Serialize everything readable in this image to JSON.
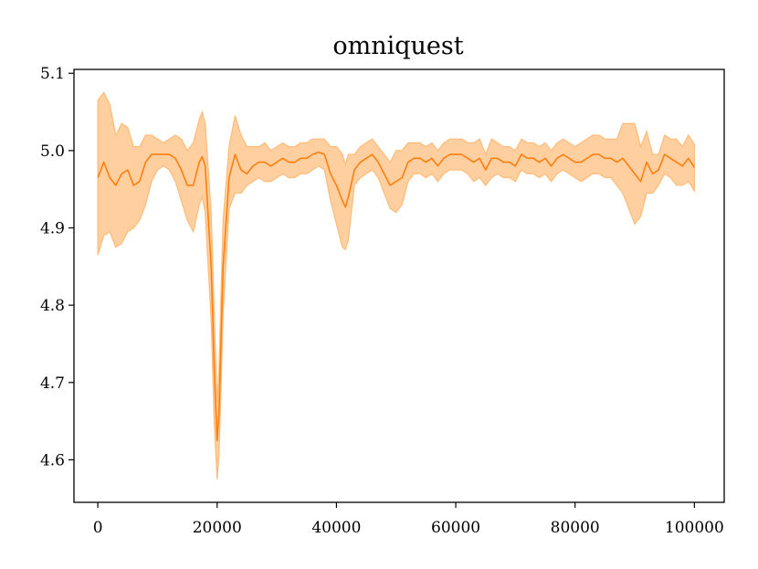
{
  "chart_data": {
    "type": "line",
    "title": "omniquest",
    "xlabel": "",
    "ylabel": "",
    "xlim": [
      -4000,
      105000
    ],
    "ylim": [
      4.545,
      5.105
    ],
    "x_ticks": [
      0,
      20000,
      40000,
      60000,
      80000,
      100000
    ],
    "x_tick_labels": [
      "0",
      "20000",
      "40000",
      "60000",
      "80000",
      "100000"
    ],
    "y_ticks": [
      4.6,
      4.7,
      4.8,
      4.9,
      5.0,
      5.1
    ],
    "y_tick_labels": [
      "4.6",
      "4.7",
      "4.8",
      "4.9",
      "5.0",
      "5.1"
    ],
    "grid": false,
    "legend": "none",
    "colors": {
      "line": "#ff7f0e",
      "band": "#ffbb78"
    },
    "series": [
      {
        "x": [
          0,
          1000,
          2000,
          3000,
          4000,
          5000,
          6000,
          7000,
          8000,
          9000,
          10000,
          11000,
          12000,
          13000,
          14000,
          15000,
          16000,
          17000,
          17500,
          18000,
          19000,
          19500,
          20000,
          20300,
          20600,
          21000,
          22000,
          23000,
          24000,
          25000,
          26000,
          27000,
          28000,
          29000,
          30000,
          31000,
          32000,
          33000,
          34000,
          35000,
          36000,
          37000,
          38000,
          39000,
          40000,
          41000,
          41500,
          42000,
          43000,
          44000,
          45000,
          46000,
          47000,
          48000,
          49000,
          50000,
          51000,
          52000,
          53000,
          54000,
          55000,
          56000,
          57000,
          58000,
          59000,
          60000,
          61000,
          62000,
          63000,
          64000,
          65000,
          66000,
          67000,
          68000,
          69000,
          70000,
          71000,
          72000,
          73000,
          74000,
          75000,
          76000,
          77000,
          78000,
          79000,
          80000,
          81000,
          82000,
          83000,
          84000,
          85000,
          86000,
          87000,
          88000,
          89000,
          90000,
          91000,
          92000,
          93000,
          94000,
          95000,
          96000,
          97000,
          98000,
          99000,
          100000
        ],
        "y": [
          4.965,
          4.985,
          4.965,
          4.955,
          4.97,
          4.975,
          4.955,
          4.96,
          4.985,
          4.995,
          4.995,
          4.995,
          4.995,
          4.99,
          4.975,
          4.955,
          4.955,
          4.985,
          4.992,
          4.98,
          4.85,
          4.72,
          4.625,
          4.66,
          4.74,
          4.85,
          4.965,
          4.995,
          4.975,
          4.97,
          4.98,
          4.985,
          4.985,
          4.98,
          4.985,
          4.99,
          4.985,
          4.985,
          4.99,
          4.99,
          4.995,
          4.998,
          4.995,
          4.97,
          4.955,
          4.935,
          4.927,
          4.94,
          4.975,
          4.985,
          4.99,
          4.995,
          4.985,
          4.97,
          4.955,
          4.96,
          4.965,
          4.985,
          4.99,
          4.99,
          4.985,
          4.99,
          4.98,
          4.99,
          4.995,
          4.995,
          4.995,
          4.99,
          4.985,
          4.99,
          4.975,
          4.99,
          4.99,
          4.985,
          4.985,
          4.98,
          4.995,
          4.99,
          4.99,
          4.985,
          4.99,
          4.98,
          4.99,
          4.995,
          4.99,
          4.985,
          4.985,
          4.99,
          4.995,
          4.995,
          4.99,
          4.99,
          4.985,
          4.99,
          4.98,
          4.97,
          4.96,
          4.985,
          4.97,
          4.975,
          4.995,
          4.99,
          4.985,
          4.98,
          4.99,
          4.978
        ],
        "lower": [
          4.865,
          4.89,
          4.895,
          4.875,
          4.88,
          4.895,
          4.9,
          4.91,
          4.93,
          4.96,
          4.975,
          4.98,
          4.975,
          4.96,
          4.935,
          4.91,
          4.895,
          4.93,
          4.94,
          4.92,
          4.78,
          4.65,
          4.575,
          4.605,
          4.68,
          4.79,
          4.925,
          4.945,
          4.945,
          4.955,
          4.96,
          4.965,
          4.96,
          4.96,
          4.965,
          4.97,
          4.965,
          4.965,
          4.97,
          4.97,
          4.975,
          4.98,
          4.975,
          4.935,
          4.905,
          4.875,
          4.872,
          4.885,
          4.955,
          4.965,
          4.97,
          4.975,
          4.965,
          4.945,
          4.925,
          4.92,
          4.93,
          4.96,
          4.97,
          4.97,
          4.965,
          4.97,
          4.96,
          4.97,
          4.975,
          4.975,
          4.975,
          4.97,
          4.96,
          4.965,
          4.955,
          4.965,
          4.97,
          4.965,
          4.965,
          4.96,
          4.975,
          4.97,
          4.97,
          4.965,
          4.97,
          4.96,
          4.97,
          4.975,
          4.97,
          4.965,
          4.96,
          4.965,
          4.97,
          4.97,
          4.965,
          4.965,
          4.955,
          4.945,
          4.925,
          4.905,
          4.915,
          4.945,
          4.945,
          4.955,
          4.97,
          4.965,
          4.955,
          4.955,
          4.96,
          4.948
        ],
        "upper": [
          5.065,
          5.075,
          5.06,
          5.02,
          5.035,
          5.03,
          5.005,
          5.005,
          5.02,
          5.02,
          5.015,
          5.01,
          5.015,
          5.02,
          5.015,
          5.0,
          5.01,
          5.04,
          5.05,
          5.035,
          4.92,
          4.79,
          4.675,
          4.715,
          4.8,
          4.91,
          5.005,
          5.045,
          5.02,
          5.005,
          5.005,
          5.005,
          5.01,
          5.0,
          5.005,
          5.01,
          5.005,
          5.005,
          5.01,
          5.01,
          5.015,
          5.015,
          5.015,
          5.005,
          5.005,
          4.995,
          4.982,
          4.995,
          4.995,
          5.005,
          5.01,
          5.015,
          5.005,
          4.995,
          4.985,
          5.0,
          5.0,
          5.01,
          5.01,
          5.01,
          5.005,
          5.01,
          5.0,
          5.01,
          5.015,
          5.015,
          5.015,
          5.01,
          5.01,
          5.015,
          4.995,
          5.015,
          5.01,
          5.005,
          5.005,
          5.0,
          5.015,
          5.01,
          5.01,
          5.005,
          5.01,
          5.0,
          5.01,
          5.015,
          5.01,
          5.005,
          5.01,
          5.015,
          5.02,
          5.02,
          5.015,
          5.015,
          5.015,
          5.035,
          5.035,
          5.035,
          5.005,
          5.025,
          4.995,
          4.995,
          5.02,
          5.015,
          5.015,
          5.005,
          5.02,
          5.008
        ]
      }
    ]
  }
}
